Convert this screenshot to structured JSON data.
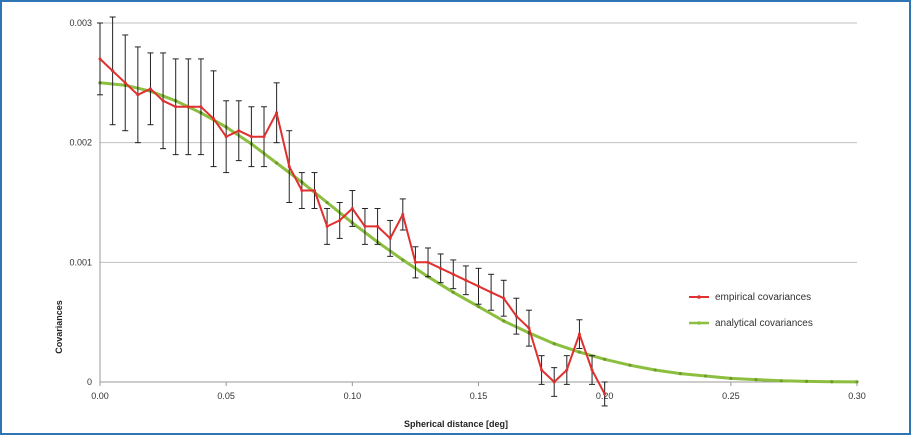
{
  "chart_data": {
    "type": "line",
    "xlabel": "Spherical distance [deg]",
    "ylabel": "Covariances",
    "xlim": [
      0,
      0.3
    ],
    "ylim": [
      0,
      0.003
    ],
    "x_ticks": [
      {
        "value": 0.0,
        "label": "0.00"
      },
      {
        "value": 0.05,
        "label": "0.05"
      },
      {
        "value": 0.1,
        "label": "0.10"
      },
      {
        "value": 0.15,
        "label": "0.15"
      },
      {
        "value": 0.2,
        "label": "0.20"
      },
      {
        "value": 0.25,
        "label": "0.25"
      },
      {
        "value": 0.3,
        "label": "0.30"
      }
    ],
    "y_ticks": [
      {
        "value": 0,
        "label": "0"
      },
      {
        "value": 0.001,
        "label": "0.001"
      },
      {
        "value": 0.002,
        "label": "0.002"
      },
      {
        "value": 0.003,
        "label": "0.003"
      }
    ],
    "grid": "horizontal",
    "legend_position": "right",
    "series": [
      {
        "name": "empirical covariances",
        "color": "#e03030",
        "x": [
          0,
          0.005,
          0.01,
          0.015,
          0.02,
          0.025,
          0.03,
          0.035,
          0.04,
          0.045,
          0.05,
          0.055,
          0.06,
          0.065,
          0.07,
          0.075,
          0.08,
          0.085,
          0.09,
          0.095,
          0.1,
          0.105,
          0.11,
          0.115,
          0.12,
          0.125,
          0.13,
          0.135,
          0.14,
          0.145,
          0.15,
          0.155,
          0.16,
          0.165,
          0.17,
          0.175,
          0.18,
          0.185,
          0.19,
          0.195,
          0.2
        ],
        "values": [
          0.0027,
          0.0026,
          0.0025,
          0.0024,
          0.00245,
          0.00235,
          0.0023,
          0.0023,
          0.0023,
          0.0022,
          0.00205,
          0.0021,
          0.00205,
          0.00205,
          0.00225,
          0.0018,
          0.0016,
          0.0016,
          0.0013,
          0.00135,
          0.00145,
          0.0013,
          0.0013,
          0.0012,
          0.0014,
          0.001,
          0.001,
          0.00095,
          0.0009,
          0.00085,
          0.0008,
          0.00075,
          0.0007,
          0.00055,
          0.00045,
          0.0001,
          0.0,
          0.0001,
          0.0004,
          0.0001,
          -0.0001
        ],
        "errors": [
          0.0003,
          0.00045,
          0.0004,
          0.0004,
          0.0003,
          0.0004,
          0.0004,
          0.0004,
          0.0004,
          0.0004,
          0.0003,
          0.00025,
          0.00025,
          0.00025,
          0.00025,
          0.0003,
          0.00015,
          0.00015,
          0.00015,
          0.00015,
          0.00015,
          0.00015,
          0.00015,
          0.00015,
          0.00013,
          0.00013,
          0.00012,
          0.00012,
          0.00012,
          0.00012,
          0.00015,
          0.00015,
          0.00015,
          0.00015,
          0.00015,
          0.00012,
          0.00012,
          0.00012,
          0.00012,
          0.00012,
          0.0001
        ]
      },
      {
        "name": "analytical covariances",
        "color": "#8cbf3f",
        "x": [
          0,
          0.01,
          0.02,
          0.03,
          0.04,
          0.05,
          0.06,
          0.07,
          0.08,
          0.09,
          0.1,
          0.11,
          0.12,
          0.13,
          0.14,
          0.15,
          0.16,
          0.17,
          0.18,
          0.19,
          0.2,
          0.21,
          0.22,
          0.23,
          0.24,
          0.25,
          0.26,
          0.27,
          0.28,
          0.29,
          0.3
        ],
        "values": [
          0.0025,
          0.00248,
          0.00243,
          0.00235,
          0.00225,
          0.00213,
          0.00199,
          0.00183,
          0.00167,
          0.0015,
          0.00133,
          0.00117,
          0.00102,
          0.00088,
          0.00075,
          0.00063,
          0.00051,
          0.00041,
          0.00032,
          0.00025,
          0.00019,
          0.00014,
          0.0001,
          7e-05,
          5e-05,
          3e-05,
          2e-05,
          1e-05,
          5e-06,
          2e-06,
          1e-06
        ]
      }
    ]
  }
}
